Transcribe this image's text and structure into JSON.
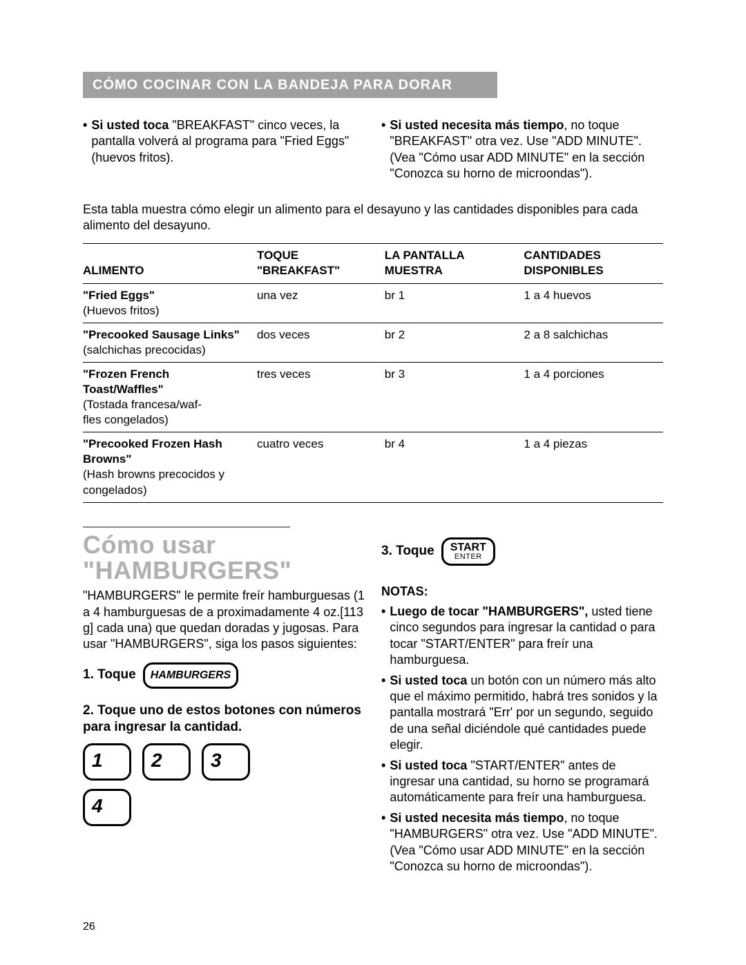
{
  "banner": "CÓMO COCINAR CON LA BANDEJA PARA DORAR",
  "top_left_bullet": {
    "bold": "Si usted toca",
    "rest": " \"BREAKFAST\" cinco veces, la pantalla volverá al programa para \"Fried Eggs\" (huevos fritos)."
  },
  "top_right_bullet": {
    "bold": "Si usted necesita más tiempo",
    "rest": ", no toque \"BREAKFAST\" otra vez. Use \"ADD MINUTE\". (Vea \"Cómo usar ADD MINUTE\" en la sección \"Conozca su horno de microondas\")."
  },
  "table_intro": "Esta tabla muestra cómo elegir un alimento para el desayuno y las cantidades disponibles para cada alimento del desayuno.",
  "headers": {
    "c0": "ALIMENTO",
    "c1": "TOQUE\n\"BREAKFAST\"",
    "c2": "LA PANTALLA\nMUESTRA",
    "c3": "CANTIDADES\nDISPONIBLES"
  },
  "rows": [
    {
      "food_bold": "\"Fried Eggs\"",
      "food_sub": "(Huevos fritos)",
      "touch": "una vez",
      "disp": "br 1",
      "qty": "1 a 4 huevos"
    },
    {
      "food_bold": "\"Precooked Sausage Links\"",
      "food_sub": "(salchichas precocidas)",
      "touch": "dos veces",
      "disp": "br 2",
      "qty": "2 a 8 salchichas"
    },
    {
      "food_bold": "\"Frozen French Toast/Waffles\"",
      "food_sub": "(Tostada francesa/waf-\nfles congelados)",
      "touch": "tres veces",
      "disp": "br 3",
      "qty": "1 a 4 porciones"
    },
    {
      "food_bold": "\"Precooked Frozen Hash Browns\"",
      "food_sub": "(Hash browns precocidos y congelados)",
      "touch": "cuatro veces",
      "disp": "br 4",
      "qty": "1 a 4 piezas"
    }
  ],
  "section_title_l1": "Cómo usar",
  "section_title_l2": "\"HAMBURGERS\"",
  "intro": "\"HAMBURGERS\" le permite freír hambur­guesas (1 a 4 hamburguesas de a proxi­madamente 4 oz.[113 g] cada una) que quedan doradas y jugosas. Para usar \"HAMBURGERS\", siga los pasos siguientes:",
  "step1_label": "1. Toque",
  "hamburgers_btn": "HAMBURGERS",
  "step2": "2. Toque uno de estos botones con números para ingresar la cantidad.",
  "nums": {
    "n1": "1",
    "n2": "2",
    "n3": "3",
    "n4": "4"
  },
  "step3_label": "3. Toque",
  "start_top": "START",
  "start_bot": "ENTER",
  "notas_head": "NOTAS:",
  "notas": [
    {
      "bold": "Luego de tocar \"HAMBURGERS\",",
      "rest": " usted tiene cinco segundos para ingresar la can­tidad o para tocar \"START/ENTER\" para freír una hamburguesa."
    },
    {
      "bold": "Si usted toca",
      "rest": " un botón con un número más alto que el máximo permitido, habrá tres sonidos y la pantalla mostrará \"Err' por un segundo, seguido de una señal diciéndole qué cantidades puede elegir."
    },
    {
      "bold": "Si usted toca",
      "rest": " \"START/ENTER\" antes de ingresar una cantidad, su horno se progra­mará automáticamente  para freír una hamburguesa."
    },
    {
      "bold": "Si usted necesita más tiempo",
      "rest": ", no toque \"HAMBURGERS\" otra vez. Use \"ADD MINUTE\". (Vea \"Cómo usar ADD MINUTE\" en la sección \"Conozca su horno de microondas\")."
    }
  ],
  "page_num": "26"
}
